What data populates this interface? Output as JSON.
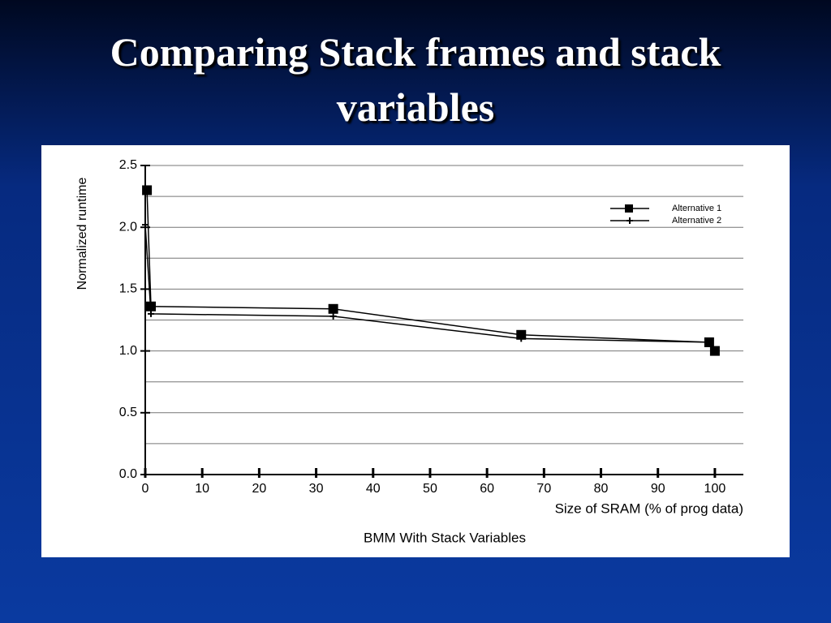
{
  "title": "Comparing Stack frames and stack variables",
  "chart_data": {
    "type": "line",
    "title": "BMM With Stack Variables",
    "x_label": "Size of SRAM (% of prog data)",
    "y_label": "Normalized runtime",
    "xlim": [
      0,
      105
    ],
    "xticks": [
      0,
      10,
      20,
      30,
      40,
      50,
      60,
      70,
      80,
      90,
      100
    ],
    "ylim": [
      0,
      2.5
    ],
    "yticks": [
      {
        "value": 0,
        "label": "0.0"
      },
      0.5,
      {
        "value": 1,
        "label": "1.0"
      },
      1.5,
      {
        "value": 2,
        "label": "2.0"
      },
      2.5
    ],
    "y_minor_grid": [
      0.25,
      0.75,
      1.25,
      1.75,
      2.25
    ],
    "grid": true,
    "legend": "upper right",
    "series": [
      {
        "name": "Alternative 1",
        "color": "#000000",
        "marker": "square",
        "x": [
          0.3,
          1,
          33,
          66,
          99,
          100
        ],
        "values": [
          2.3,
          1.36,
          1.34,
          1.13,
          1.07,
          1.0
        ]
      },
      {
        "name": "Alternative 2",
        "color": "#000000",
        "marker": "plus",
        "x": [
          0,
          1,
          33,
          66,
          99
        ],
        "values": [
          2.02,
          1.3,
          1.28,
          1.1,
          1.07
        ]
      }
    ]
  }
}
